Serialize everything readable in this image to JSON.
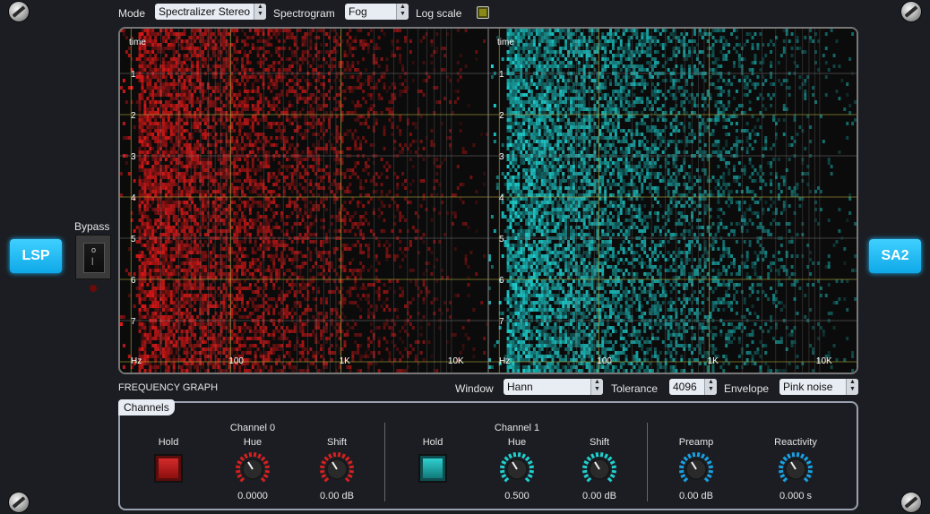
{
  "header": {
    "mode_label": "Mode",
    "mode_value": "Spectralizer Stereo",
    "spectrogram_label": "Spectrogram",
    "spectrogram_value": "Fog",
    "logscale_label": "Log scale",
    "logscale_checked": true
  },
  "side": {
    "left_logo": "LSP",
    "right_logo": "SA2",
    "bypass_label": "Bypass"
  },
  "graph": {
    "left": {
      "time_label": "time",
      "time_ticks": [
        "1",
        "2",
        "3",
        "4",
        "5",
        "6",
        "7"
      ],
      "freq_unit": "Hz",
      "freq_ticks": [
        "100",
        "1K",
        "10K"
      ],
      "color": "#e01818"
    },
    "right": {
      "time_label": "time",
      "time_ticks": [
        "1",
        "2",
        "3",
        "4",
        "5",
        "6",
        "7"
      ],
      "freq_unit": "Hz",
      "freq_ticks": [
        "100",
        "1K",
        "10K"
      ],
      "color": "#1ed8d8"
    },
    "caption": "FREQUENCY GRAPH"
  },
  "controls": {
    "window_label": "Window",
    "window_value": "Hann",
    "tolerance_label": "Tolerance",
    "tolerance_value": "4096",
    "envelope_label": "Envelope",
    "envelope_value": "Pink noise"
  },
  "channels": {
    "tab_label": "Channels",
    "ch0": {
      "title": "Channel 0",
      "hold_label": "Hold",
      "hue_label": "Hue",
      "hue_value": "0.0000",
      "shift_label": "Shift",
      "shift_value": "0.00 dB",
      "color": "#d42020"
    },
    "ch1": {
      "title": "Channel 1",
      "hold_label": "Hold",
      "hue_label": "Hue",
      "hue_value": "0.500",
      "shift_label": "Shift",
      "shift_value": "0.00 dB",
      "color": "#20d0d0"
    },
    "preamp_label": "Preamp",
    "preamp_value": "0.00 dB",
    "reactivity_label": "Reactivity",
    "reactivity_value": "0.000 s",
    "global_color": "#1aa0e0"
  }
}
